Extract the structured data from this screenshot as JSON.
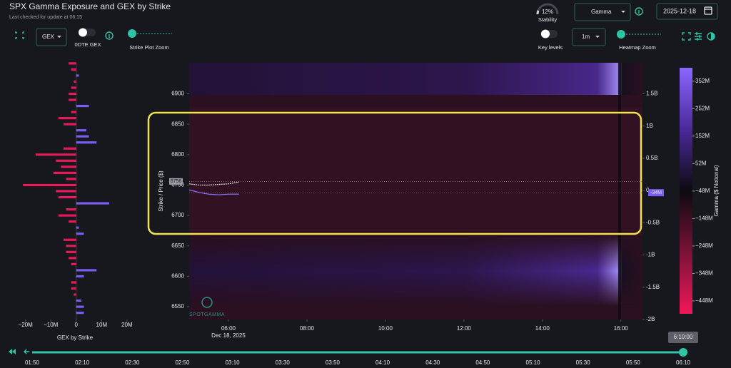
{
  "header": {
    "title": "SPX Gamma Exposure and GEX by Strike",
    "subtitle": "Last checked for update at 06:15"
  },
  "controls": {
    "gex_select": "GEX",
    "odte_toggle": "0DTE GEX",
    "strike_zoom": "Strike Plot Zoom",
    "stability": {
      "value": 12,
      "label": "12%"
    },
    "stability_label": "Stability",
    "metric_select": "Gamma",
    "date": "2025-12-18",
    "key_levels": "Key levels",
    "interval_select": "1m",
    "heatmap_zoom": "Heatmap Zoom"
  },
  "chart_data": [
    {
      "type": "bar",
      "orientation": "horizontal",
      "title": "GEX by Strike",
      "y": [
        6950,
        6940,
        6930,
        6920,
        6910,
        6900,
        6890,
        6880,
        6870,
        6860,
        6850,
        6840,
        6830,
        6820,
        6810,
        6800,
        6790,
        6780,
        6770,
        6760,
        6750,
        6740,
        6730,
        6720,
        6710,
        6700,
        6690,
        6680,
        6670,
        6660,
        6650,
        6640,
        6630,
        6620,
        6610,
        6600,
        6590,
        6580,
        6570,
        6560,
        6550,
        6540
      ],
      "values": [
        -3,
        -2,
        1,
        -1,
        -2,
        -3,
        -3,
        5,
        -2,
        -7,
        -5,
        4,
        5,
        8,
        -5,
        -16,
        -8,
        -6,
        -9,
        -4,
        -21,
        -8,
        -7,
        13,
        -4,
        -7,
        -3,
        1,
        3,
        -5,
        -4,
        -4,
        -3,
        -2,
        8,
        3,
        -2,
        -2,
        -1,
        2,
        3,
        3
      ],
      "positive_color": "#7b5cf5",
      "negative_color": "#e8195a",
      "xlim": [
        -23,
        22
      ],
      "xticks": [
        {
          "value": -20,
          "label": "−20M"
        },
        {
          "value": -10,
          "label": "−10M"
        },
        0,
        {
          "value": 10,
          "label": "10M"
        },
        {
          "value": 20,
          "label": "20M"
        }
      ],
      "ylim": [
        6529,
        6951
      ]
    },
    {
      "type": "heatmap",
      "ylabel": "Strike / Price ($)",
      "ylim": [
        6529,
        6951
      ],
      "yticks": [
        6550,
        6600,
        6650,
        6700,
        6750,
        6800,
        6850,
        6900
      ],
      "xlim": [
        5,
        16.55
      ],
      "xticks": [
        {
          "value": 6,
          "label": "06:00"
        },
        {
          "value": 8,
          "label": "08:00"
        },
        {
          "value": 10,
          "label": "10:00"
        },
        {
          "value": 12,
          "label": "12:00"
        },
        {
          "value": 14,
          "label": "14:00"
        },
        {
          "value": 16,
          "label": "16:00"
        }
      ],
      "date_label": "Dec 18, 2025",
      "y2lim": [
        -2,
        1.98
      ],
      "y2ticks": [
        {
          "value": 1.5,
          "label": "1.5B"
        },
        {
          "value": 1,
          "label": "1B"
        },
        {
          "value": 0.5,
          "label": "0.5B"
        },
        0,
        {
          "value": -0.5,
          "label": "-0.5B"
        },
        {
          "value": -1,
          "label": "-1B"
        },
        {
          "value": -1.5,
          "label": "-1.5B"
        },
        {
          "value": -2,
          "label": "-2B"
        }
      ],
      "lines": [
        {
          "color": "#d8d8d8",
          "dashed": true,
          "x": [
            5,
            5.25,
            5.5,
            5.75,
            6,
            6.27
          ],
          "values": [
            6752,
            6750,
            6750,
            6751,
            6752,
            6755
          ]
        },
        {
          "color": "#8a6cff",
          "dashed": false,
          "x": [
            5,
            5.25,
            5.5,
            5.75,
            6,
            6.27
          ],
          "values": [
            6742,
            6738,
            6735,
            6734,
            6735,
            6735
          ]
        }
      ],
      "price_label": 6756,
      "gex_label": {
        "value": -0.034,
        "label": "-34M"
      },
      "colorbar": {
        "label": "Gamma ($ Notional)",
        "clim": [
          -495,
          401
        ],
        "ticks": [
          {
            "value": 352,
            "label": "352M"
          },
          {
            "value": 252,
            "label": "252M"
          },
          {
            "value": 152,
            "label": "152M"
          },
          {
            "value": 52,
            "label": "52M"
          },
          {
            "value": -48,
            "label": "−48M"
          },
          {
            "value": -148,
            "label": "−148M"
          },
          {
            "value": -248,
            "label": "−248M"
          },
          {
            "value": -348,
            "label": "−348M"
          },
          {
            "value": -448,
            "label": "−448M"
          }
        ],
        "colors": [
          "#f0185a",
          "#7a1238",
          "#0c0a10",
          "#4a2a9a",
          "#8a66ff"
        ]
      },
      "watermark": "SPOTGAMMA"
    }
  ],
  "timeline": {
    "current": "6:10:00",
    "ticks": [
      "01:50",
      "02:10",
      "02:30",
      "02:50",
      "03:10",
      "03:30",
      "03:50",
      "04:10",
      "04:30",
      "04:50",
      "05:10",
      "05:30",
      "05:50",
      "06:10"
    ]
  }
}
